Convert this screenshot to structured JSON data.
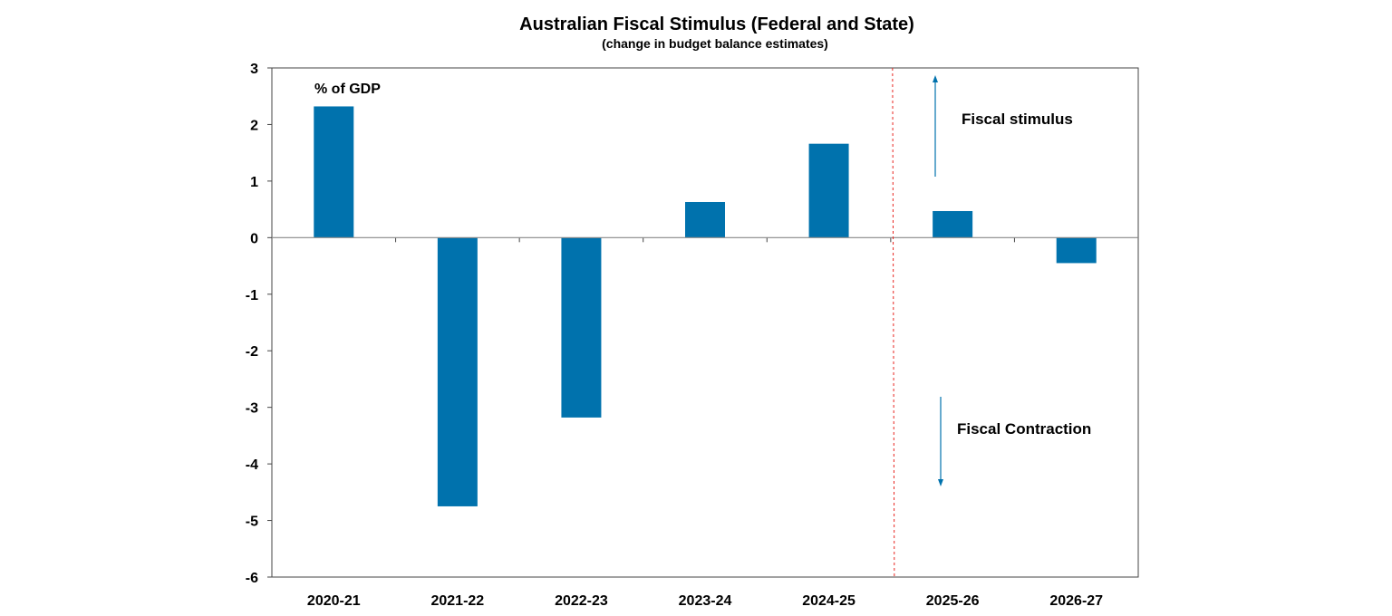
{
  "chart_data": {
    "type": "bar",
    "title": "Australian Fiscal Stimulus (Federal and State)",
    "subtitle": "(change in budget balance estimates)",
    "ylabel": "% of GDP",
    "xlabel": "",
    "categories": [
      "2020-21",
      "2021-22",
      "2022-23",
      "2023-24",
      "2024-25",
      "2025-26",
      "2026-27"
    ],
    "values": [
      2.32,
      -4.75,
      -3.18,
      0.63,
      1.66,
      0.47,
      -0.45
    ],
    "ylim": [
      -6,
      3
    ],
    "yticks": [
      "3",
      "2",
      "1",
      "0",
      "-1",
      "-2",
      "-3",
      "-4",
      "-5",
      "-6"
    ],
    "grid": false,
    "bar_color": "#0072AD",
    "divider": {
      "after_category": "2024-25",
      "color": "#E8241F",
      "style": "dashed"
    },
    "annotations": {
      "up": "Fiscal stimulus",
      "down": "Fiscal Contraction"
    }
  }
}
